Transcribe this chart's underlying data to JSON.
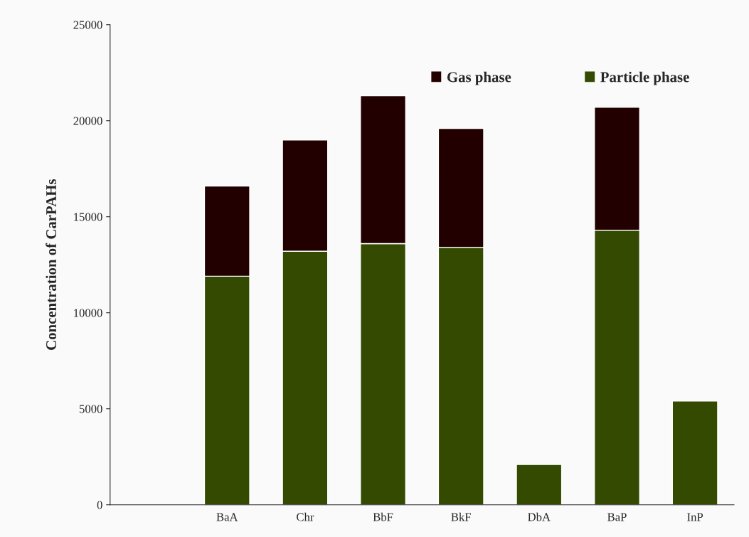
{
  "chart_data": {
    "type": "bar",
    "stacked": true,
    "ylabel": "Concentration of CarPAHs",
    "categories": [
      null,
      "BaA",
      "Chr",
      "BbF",
      "BkF",
      "DbA",
      "BaP",
      "InP"
    ],
    "series": [
      {
        "name": "Particle phase",
        "color": "#334a00",
        "values": [
          null,
          11900,
          13200,
          13600,
          13400,
          2100,
          14300,
          5400
        ]
      },
      {
        "name": "Gas phase",
        "color": "#220000",
        "values": [
          null,
          4700,
          5800,
          7700,
          6200,
          null,
          6400,
          null
        ]
      }
    ],
    "ylim": [
      0,
      25000
    ],
    "yticks": [
      0,
      5000,
      10000,
      15000,
      20000,
      25000
    ],
    "grid": false,
    "legend": "top right"
  }
}
